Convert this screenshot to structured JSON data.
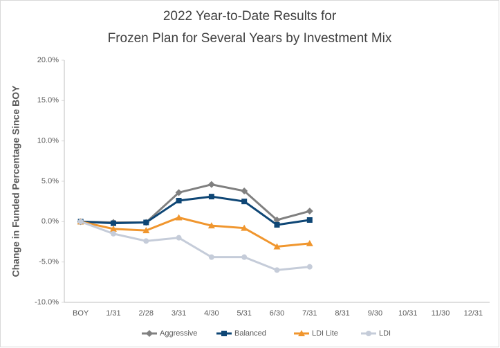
{
  "chart_data": {
    "type": "line",
    "title": "2022 Year-to-Date Results for",
    "subtitle": "Frozen Plan for Several Years by Investment Mix",
    "y_label": "Change in Funded Percentage Since BOY",
    "categories": [
      "BOY",
      "1/31",
      "2/28",
      "3/31",
      "4/30",
      "5/31",
      "6/30",
      "7/31",
      "8/31",
      "9/30",
      "10/31",
      "11/30",
      "12/31"
    ],
    "series": [
      {
        "name": "Aggressive",
        "color": "#808080",
        "marker": "diamond",
        "values": [
          0,
          -0.1,
          -0.1,
          3.6,
          4.6,
          3.8,
          0.2,
          1.3,
          null,
          null,
          null,
          null,
          null
        ]
      },
      {
        "name": "Balanced",
        "color": "#0e4675",
        "marker": "square",
        "values": [
          0,
          -0.2,
          -0.1,
          2.6,
          3.1,
          2.5,
          -0.4,
          0.2,
          null,
          null,
          null,
          null,
          null
        ]
      },
      {
        "name": "LDI Lite",
        "color": "#f0962e",
        "marker": "triangle",
        "values": [
          0,
          -0.9,
          -1.1,
          0.5,
          -0.5,
          -0.8,
          -3.1,
          -2.7,
          null,
          null,
          null,
          null,
          null
        ]
      },
      {
        "name": "LDI",
        "color": "#c5ccd9",
        "marker": "circle",
        "values": [
          0,
          -1.5,
          -2.4,
          -2.0,
          -4.4,
          -4.4,
          -6.0,
          -5.6,
          null,
          null,
          null,
          null,
          null
        ]
      }
    ],
    "ylim": [
      -10,
      20
    ],
    "yticks": [
      {
        "value": -10,
        "label": "-10.0%"
      },
      {
        "value": -5,
        "label": "-5.0%"
      },
      {
        "value": 0,
        "label": "0.0%"
      },
      {
        "value": 5,
        "label": "5.0%"
      },
      {
        "value": 10,
        "label": "10.0%"
      },
      {
        "value": 15,
        "label": "15.0%"
      },
      {
        "value": 20,
        "label": "20.0%"
      }
    ],
    "grid": false,
    "legend": "bottom"
  }
}
